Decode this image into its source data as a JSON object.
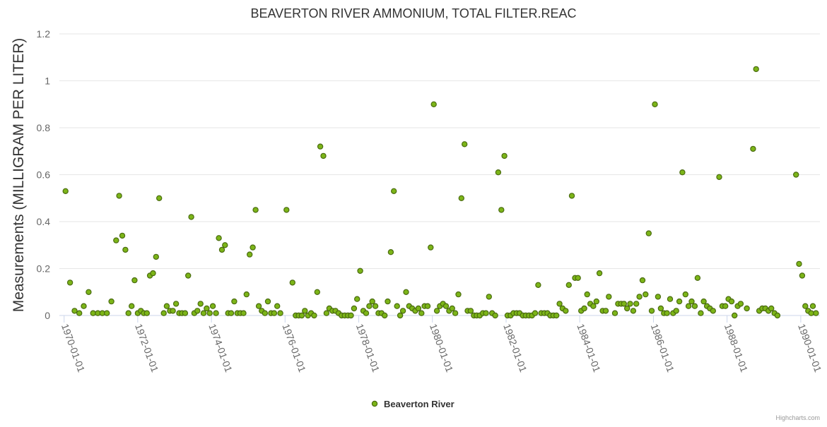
{
  "chart_data": {
    "type": "scatter",
    "title": "BEAVERTON RIVER AMMONIUM, TOTAL FILTER.REAC",
    "ylabel": "Measurements (MILLIGRAM PER LITER)",
    "xlabel": "",
    "ylim": [
      0,
      1.2
    ],
    "yticks": [
      0,
      0.2,
      0.4,
      0.6,
      0.8,
      1,
      1.2
    ],
    "ytick_labels": [
      "0",
      "0.2",
      "0.4",
      "0.6",
      "0.8",
      "1",
      "1.2"
    ],
    "xlim": [
      "1969-11-15",
      "1990-07-10"
    ],
    "xticks": [
      "1970-01-01",
      "1972-01-01",
      "1974-01-01",
      "1976-01-01",
      "1978-01-01",
      "1980-01-01",
      "1982-01-01",
      "1984-01-01",
      "1986-01-01",
      "1988-01-01",
      "1990-01-01"
    ],
    "grid": true,
    "legend": "bottom-center",
    "credits": "Highcharts.com",
    "series": [
      {
        "name": "Beaverton River",
        "color": "#7cb518",
        "border": "#4a6b10",
        "points": [
          [
            "1970-01-15",
            0.53
          ],
          [
            "1970-03-01",
            0.14
          ],
          [
            "1970-04-15",
            0.02
          ],
          [
            "1970-06-01",
            0.01
          ],
          [
            "1970-07-15",
            0.04
          ],
          [
            "1970-09-01",
            0.1
          ],
          [
            "1970-10-15",
            0.01
          ],
          [
            "1970-12-01",
            0.01
          ],
          [
            "1971-01-15",
            0.01
          ],
          [
            "1971-03-01",
            0.01
          ],
          [
            "1971-04-15",
            0.06
          ],
          [
            "1971-06-01",
            0.32
          ],
          [
            "1971-07-01",
            0.51
          ],
          [
            "1971-08-01",
            0.34
          ],
          [
            "1971-09-01",
            0.28
          ],
          [
            "1971-10-01",
            0.01
          ],
          [
            "1971-11-01",
            0.04
          ],
          [
            "1971-12-01",
            0.15
          ],
          [
            "1972-01-01",
            0.01
          ],
          [
            "1972-02-01",
            0.02
          ],
          [
            "1972-03-01",
            0.01
          ],
          [
            "1972-04-01",
            0.01
          ],
          [
            "1972-05-01",
            0.17
          ],
          [
            "1972-06-01",
            0.18
          ],
          [
            "1972-07-01",
            0.25
          ],
          [
            "1972-08-01",
            0.5
          ],
          [
            "1972-09-15",
            0.01
          ],
          [
            "1972-10-15",
            0.04
          ],
          [
            "1972-11-15",
            0.02
          ],
          [
            "1972-12-15",
            0.02
          ],
          [
            "1973-01-15",
            0.05
          ],
          [
            "1973-02-15",
            0.01
          ],
          [
            "1973-03-15",
            0.01
          ],
          [
            "1973-04-15",
            0.01
          ],
          [
            "1973-05-15",
            0.17
          ],
          [
            "1973-06-15",
            0.42
          ],
          [
            "1973-07-15",
            0.01
          ],
          [
            "1973-08-15",
            0.02
          ],
          [
            "1973-09-15",
            0.05
          ],
          [
            "1973-10-15",
            0.01
          ],
          [
            "1973-11-15",
            0.03
          ],
          [
            "1973-12-15",
            0.01
          ],
          [
            "1974-01-15",
            0.04
          ],
          [
            "1974-02-15",
            0.01
          ],
          [
            "1974-03-15",
            0.33
          ],
          [
            "1974-04-15",
            0.28
          ],
          [
            "1974-05-15",
            0.3
          ],
          [
            "1974-06-15",
            0.01
          ],
          [
            "1974-07-15",
            0.01
          ],
          [
            "1974-08-15",
            0.06
          ],
          [
            "1974-09-15",
            0.01
          ],
          [
            "1974-10-15",
            0.01
          ],
          [
            "1974-11-15",
            0.01
          ],
          [
            "1974-12-15",
            0.09
          ],
          [
            "1975-01-15",
            0.26
          ],
          [
            "1975-02-15",
            0.29
          ],
          [
            "1975-03-15",
            0.45
          ],
          [
            "1975-04-15",
            0.04
          ],
          [
            "1975-05-15",
            0.02
          ],
          [
            "1975-06-15",
            0.01
          ],
          [
            "1975-07-15",
            0.06
          ],
          [
            "1975-08-15",
            0.01
          ],
          [
            "1975-09-15",
            0.01
          ],
          [
            "1975-10-15",
            0.04
          ],
          [
            "1975-11-15",
            0.01
          ],
          [
            "1976-01-15",
            0.45
          ],
          [
            "1976-03-15",
            0.14
          ],
          [
            "1976-04-15",
            0.0
          ],
          [
            "1976-05-15",
            0.0
          ],
          [
            "1976-06-15",
            0.0
          ],
          [
            "1976-07-15",
            0.02
          ],
          [
            "1976-08-15",
            0.0
          ],
          [
            "1976-09-15",
            0.01
          ],
          [
            "1976-10-15",
            0.0
          ],
          [
            "1976-11-15",
            0.1
          ],
          [
            "1976-12-15",
            0.72
          ],
          [
            "1977-01-15",
            0.68
          ],
          [
            "1977-02-15",
            0.01
          ],
          [
            "1977-03-15",
            0.03
          ],
          [
            "1977-04-15",
            0.02
          ],
          [
            "1977-05-15",
            0.02
          ],
          [
            "1977-06-15",
            0.01
          ],
          [
            "1977-07-15",
            0.0
          ],
          [
            "1977-08-15",
            0.0
          ],
          [
            "1977-09-15",
            0.0
          ],
          [
            "1977-10-15",
            0.0
          ],
          [
            "1977-11-15",
            0.03
          ],
          [
            "1977-12-15",
            0.07
          ],
          [
            "1978-01-15",
            0.19
          ],
          [
            "1978-02-15",
            0.02
          ],
          [
            "1978-03-15",
            0.01
          ],
          [
            "1978-04-15",
            0.04
          ],
          [
            "1978-05-15",
            0.06
          ],
          [
            "1978-06-15",
            0.04
          ],
          [
            "1978-07-15",
            0.01
          ],
          [
            "1978-08-15",
            0.01
          ],
          [
            "1978-09-15",
            0.0
          ],
          [
            "1978-10-15",
            0.06
          ],
          [
            "1978-11-15",
            0.27
          ],
          [
            "1978-12-15",
            0.53
          ],
          [
            "1979-01-15",
            0.04
          ],
          [
            "1979-02-15",
            0.0
          ],
          [
            "1979-03-15",
            0.02
          ],
          [
            "1979-04-15",
            0.1
          ],
          [
            "1979-05-15",
            0.04
          ],
          [
            "1979-06-15",
            0.03
          ],
          [
            "1979-07-15",
            0.02
          ],
          [
            "1979-08-15",
            0.03
          ],
          [
            "1979-09-15",
            0.01
          ],
          [
            "1979-10-15",
            0.04
          ],
          [
            "1979-11-15",
            0.04
          ],
          [
            "1979-12-15",
            0.29
          ],
          [
            "1980-01-15",
            0.9
          ],
          [
            "1980-02-15",
            0.02
          ],
          [
            "1980-03-15",
            0.04
          ],
          [
            "1980-04-15",
            0.05
          ],
          [
            "1980-05-15",
            0.04
          ],
          [
            "1980-06-15",
            0.02
          ],
          [
            "1980-07-15",
            0.03
          ],
          [
            "1980-08-15",
            0.01
          ],
          [
            "1980-09-15",
            0.09
          ],
          [
            "1980-10-15",
            0.5
          ],
          [
            "1980-11-15",
            0.73
          ],
          [
            "1980-12-15",
            0.02
          ],
          [
            "1981-01-15",
            0.02
          ],
          [
            "1981-02-15",
            0.0
          ],
          [
            "1981-03-15",
            0.0
          ],
          [
            "1981-04-15",
            0.0
          ],
          [
            "1981-05-15",
            0.01
          ],
          [
            "1981-06-15",
            0.01
          ],
          [
            "1981-07-15",
            0.08
          ],
          [
            "1981-08-15",
            0.01
          ],
          [
            "1981-09-15",
            0.0
          ],
          [
            "1981-10-15",
            0.61
          ],
          [
            "1981-11-15",
            0.45
          ],
          [
            "1981-12-15",
            0.68
          ],
          [
            "1982-01-15",
            0.0
          ],
          [
            "1982-02-15",
            0.0
          ],
          [
            "1982-03-15",
            0.01
          ],
          [
            "1982-04-15",
            0.01
          ],
          [
            "1982-05-15",
            0.01
          ],
          [
            "1982-06-15",
            0.0
          ],
          [
            "1982-07-15",
            0.0
          ],
          [
            "1982-08-15",
            0.0
          ],
          [
            "1982-09-15",
            0.0
          ],
          [
            "1982-10-15",
            0.01
          ],
          [
            "1982-11-15",
            0.13
          ],
          [
            "1982-12-15",
            0.01
          ],
          [
            "1983-01-15",
            0.01
          ],
          [
            "1983-02-15",
            0.01
          ],
          [
            "1983-03-15",
            0.0
          ],
          [
            "1983-04-15",
            0.0
          ],
          [
            "1983-05-15",
            0.0
          ],
          [
            "1983-06-15",
            0.05
          ],
          [
            "1983-07-15",
            0.03
          ],
          [
            "1983-08-15",
            0.02
          ],
          [
            "1983-09-15",
            0.13
          ],
          [
            "1983-10-15",
            0.51
          ],
          [
            "1983-11-15",
            0.16
          ],
          [
            "1983-12-15",
            0.16
          ],
          [
            "1984-01-15",
            0.02
          ],
          [
            "1984-02-15",
            0.03
          ],
          [
            "1984-03-15",
            0.09
          ],
          [
            "1984-04-15",
            0.05
          ],
          [
            "1984-05-15",
            0.04
          ],
          [
            "1984-06-15",
            0.06
          ],
          [
            "1984-07-15",
            0.18
          ],
          [
            "1984-08-15",
            0.02
          ],
          [
            "1984-09-15",
            0.02
          ],
          [
            "1984-10-15",
            0.08
          ],
          [
            "1984-12-15",
            0.01
          ],
          [
            "1985-01-15",
            0.05
          ],
          [
            "1985-02-15",
            0.05
          ],
          [
            "1985-03-15",
            0.05
          ],
          [
            "1985-04-15",
            0.03
          ],
          [
            "1985-05-15",
            0.05
          ],
          [
            "1985-06-15",
            0.02
          ],
          [
            "1985-07-15",
            0.05
          ],
          [
            "1985-08-15",
            0.08
          ],
          [
            "1985-09-15",
            0.15
          ],
          [
            "1985-10-15",
            0.09
          ],
          [
            "1985-11-15",
            0.35
          ],
          [
            "1985-12-15",
            0.02
          ],
          [
            "1986-01-15",
            0.9
          ],
          [
            "1986-02-15",
            0.08
          ],
          [
            "1986-03-15",
            0.03
          ],
          [
            "1986-04-15",
            0.01
          ],
          [
            "1986-05-15",
            0.01
          ],
          [
            "1986-06-15",
            0.07
          ],
          [
            "1986-07-15",
            0.01
          ],
          [
            "1986-08-15",
            0.02
          ],
          [
            "1986-09-15",
            0.06
          ],
          [
            "1986-10-15",
            0.61
          ],
          [
            "1986-11-15",
            0.09
          ],
          [
            "1986-12-15",
            0.04
          ],
          [
            "1987-01-15",
            0.06
          ],
          [
            "1987-02-15",
            0.04
          ],
          [
            "1987-03-15",
            0.16
          ],
          [
            "1987-04-15",
            0.01
          ],
          [
            "1987-05-15",
            0.06
          ],
          [
            "1987-06-15",
            0.04
          ],
          [
            "1987-07-15",
            0.03
          ],
          [
            "1987-08-15",
            0.02
          ],
          [
            "1987-10-15",
            0.59
          ],
          [
            "1987-11-15",
            0.04
          ],
          [
            "1987-12-15",
            0.04
          ],
          [
            "1988-01-15",
            0.07
          ],
          [
            "1988-02-15",
            0.06
          ],
          [
            "1988-03-15",
            0.0
          ],
          [
            "1988-04-15",
            0.04
          ],
          [
            "1988-05-15",
            0.05
          ],
          [
            "1988-07-15",
            0.03
          ],
          [
            "1988-09-15",
            0.71
          ],
          [
            "1988-10-15",
            1.05
          ],
          [
            "1988-11-15",
            0.02
          ],
          [
            "1988-12-15",
            0.03
          ],
          [
            "1989-01-15",
            0.03
          ],
          [
            "1989-02-15",
            0.02
          ],
          [
            "1989-03-15",
            0.03
          ],
          [
            "1989-04-15",
            0.01
          ],
          [
            "1989-05-15",
            0.0
          ],
          [
            "1989-11-15",
            0.6
          ],
          [
            "1989-12-15",
            0.22
          ],
          [
            "1990-01-15",
            0.17
          ],
          [
            "1990-02-15",
            0.04
          ],
          [
            "1990-03-15",
            0.02
          ],
          [
            "1990-04-15",
            0.01
          ],
          [
            "1990-05-01",
            0.04
          ],
          [
            "1990-06-01",
            0.01
          ]
        ]
      }
    ]
  }
}
